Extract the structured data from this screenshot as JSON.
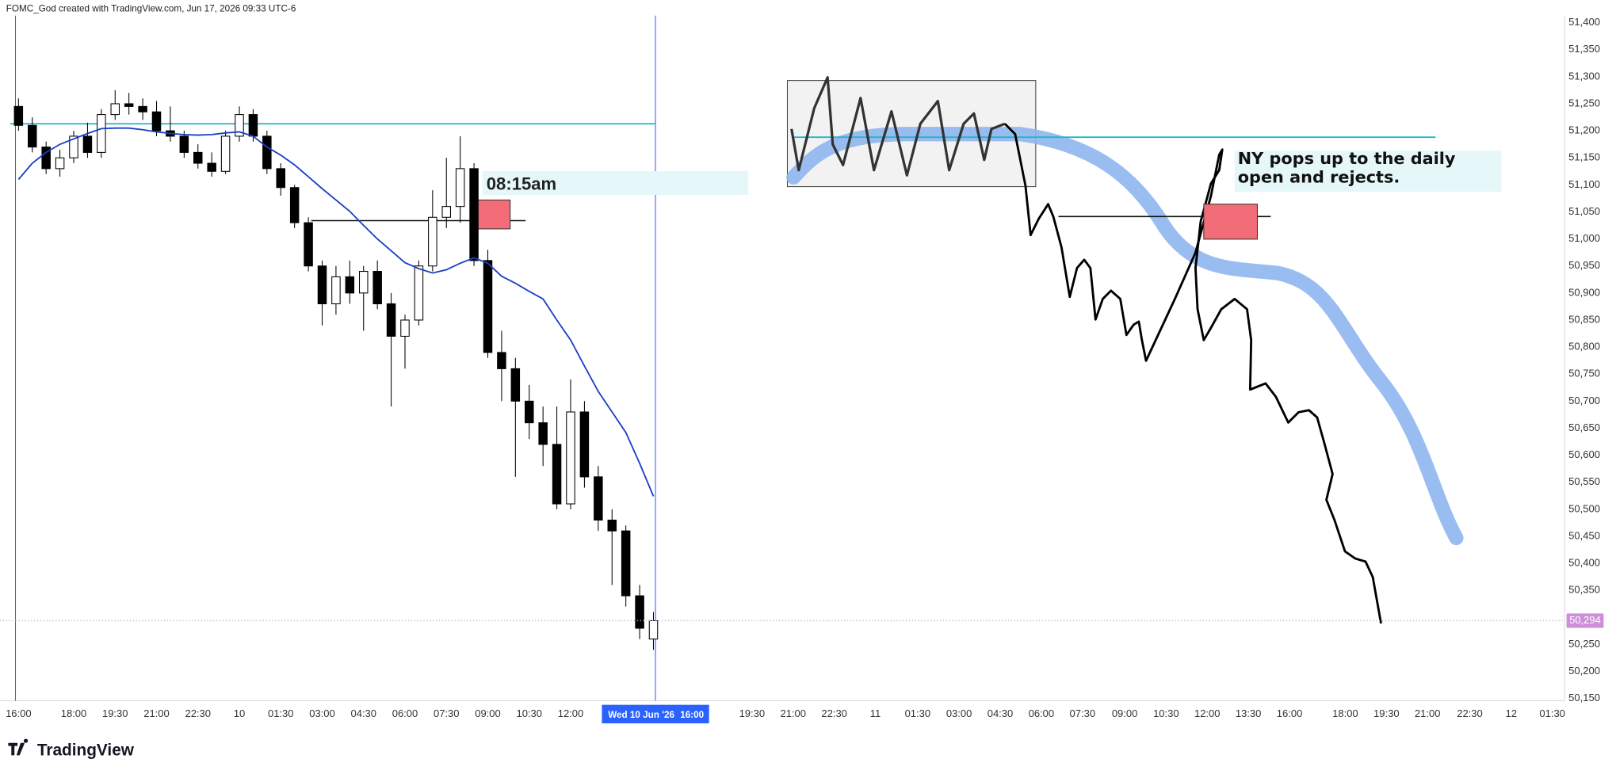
{
  "chart_data": {
    "type": "candlestick",
    "header": "FOMC_God created with TradingView.com, Jun 17, 2026 09:33 UTC-6",
    "watermark": "TradingView",
    "annotations": [
      "08:15am",
      "NY pops up to the daily open and rejects."
    ],
    "crosshair": {
      "date": "Wed 10 Jun '26",
      "time": "16:00"
    },
    "last_price": {
      "value": 50294,
      "label": "50,294",
      "color": "#ce8fd8"
    },
    "grid": false,
    "up_color": "#ffffff",
    "down_color": "#000000",
    "xlim": [
      -0.67,
      56
    ],
    "ylim": [
      50146,
      51413
    ],
    "xticks": [
      {
        "value": 0,
        "label": "16:00"
      },
      {
        "value": 2,
        "label": "18:00"
      },
      {
        "value": 3.5,
        "label": "19:30"
      },
      {
        "value": 5,
        "label": "21:00"
      },
      {
        "value": 6.5,
        "label": "22:30"
      },
      {
        "value": 8,
        "label": "10"
      },
      {
        "value": 9.5,
        "label": "01:30"
      },
      {
        "value": 11,
        "label": "03:00"
      },
      {
        "value": 12.5,
        "label": "04:30"
      },
      {
        "value": 14,
        "label": "06:00"
      },
      {
        "value": 15.5,
        "label": "07:30"
      },
      {
        "value": 17,
        "label": "09:00"
      },
      {
        "value": 18.5,
        "label": "10:30"
      },
      {
        "value": 20,
        "label": "12:00"
      },
      {
        "value": 26.57,
        "label": "19:30"
      },
      {
        "value": 28.06,
        "label": "21:00"
      },
      {
        "value": 29.55,
        "label": "22:30"
      },
      {
        "value": 31.04,
        "label": "11"
      },
      {
        "value": 32.57,
        "label": "01:30"
      },
      {
        "value": 34.07,
        "label": "03:00"
      },
      {
        "value": 35.56,
        "label": "04:30"
      },
      {
        "value": 37.05,
        "label": "06:00"
      },
      {
        "value": 38.54,
        "label": "07:30"
      },
      {
        "value": 40.07,
        "label": "09:00"
      },
      {
        "value": 41.57,
        "label": "10:30"
      },
      {
        "value": 43.06,
        "label": "12:00"
      },
      {
        "value": 44.55,
        "label": "13:30"
      },
      {
        "value": 46.04,
        "label": "16:00"
      },
      {
        "value": 48.06,
        "label": "18:00"
      },
      {
        "value": 49.55,
        "label": "19:30"
      },
      {
        "value": 51.04,
        "label": "21:00"
      },
      {
        "value": 52.57,
        "label": "22:30"
      },
      {
        "value": 54.07,
        "label": "12"
      },
      {
        "value": 55.56,
        "label": "01:30"
      }
    ],
    "yticks": [
      {
        "value": 51400,
        "label": "51,400"
      },
      {
        "value": 51350,
        "label": "51,350"
      },
      {
        "value": 51300,
        "label": "51,300"
      },
      {
        "value": 51250,
        "label": "51,250"
      },
      {
        "value": 51200,
        "label": "51,200"
      },
      {
        "value": 51150,
        "label": "51,150"
      },
      {
        "value": 51100,
        "label": "51,100"
      },
      {
        "value": 51050,
        "label": "51,050"
      },
      {
        "value": 51000,
        "label": "51,000"
      },
      {
        "value": 50950,
        "label": "50,950"
      },
      {
        "value": 50900,
        "label": "50,900"
      },
      {
        "value": 50850,
        "label": "50,850"
      },
      {
        "value": 50800,
        "label": "50,800"
      },
      {
        "value": 50750,
        "label": "50,750"
      },
      {
        "value": 50700,
        "label": "50,700"
      },
      {
        "value": 50650,
        "label": "50,650"
      },
      {
        "value": 50600,
        "label": "50,600"
      },
      {
        "value": 50550,
        "label": "50,550"
      },
      {
        "value": 50500,
        "label": "50,500"
      },
      {
        "value": 50450,
        "label": "50,450"
      },
      {
        "value": 50400,
        "label": "50,400"
      },
      {
        "value": 50350,
        "label": "50,350"
      },
      {
        "value": 50250,
        "label": "50,250"
      },
      {
        "value": 50200,
        "label": "50,200"
      },
      {
        "value": 50150,
        "label": "50,150"
      }
    ],
    "x": [
      0,
      0.5,
      1,
      1.5,
      2,
      2.5,
      3,
      3.5,
      4,
      4.5,
      5,
      5.5,
      6,
      6.5,
      7,
      7.5,
      8,
      8.5,
      9,
      9.5,
      10,
      10.5,
      11,
      11.5,
      12,
      12.5,
      13,
      13.5,
      14,
      14.5,
      15,
      15.5,
      16,
      16.5,
      17,
      17.5,
      18,
      18.5,
      19,
      19.5,
      20,
      20.5,
      21,
      21.5,
      22,
      22.5,
      23
    ],
    "open": [
      51245,
      51210,
      51170,
      51130,
      51150,
      51190,
      51160,
      51230,
      51250,
      51245,
      51235,
      51200,
      51190,
      51160,
      51140,
      51125,
      51190,
      51230,
      51190,
      51130,
      51095,
      51030,
      50950,
      50880,
      50930,
      50900,
      50940,
      50880,
      50820,
      50850,
      50950,
      51040,
      51060,
      51130,
      50960,
      50790,
      50760,
      50700,
      50660,
      50620,
      50510,
      50680,
      50560,
      50480,
      50460,
      50340,
      50260
    ],
    "high": [
      51260,
      51225,
      51180,
      51165,
      51200,
      51215,
      51240,
      51275,
      51270,
      51260,
      51255,
      51245,
      51200,
      51175,
      51160,
      51200,
      51245,
      51240,
      51200,
      51140,
      51100,
      51040,
      50960,
      50950,
      50960,
      50950,
      50960,
      50900,
      50860,
      50960,
      51090,
      51150,
      51190,
      51140,
      50980,
      50830,
      50780,
      50730,
      50690,
      50690,
      50740,
      50700,
      50580,
      50500,
      50470,
      50360,
      50310
    ],
    "low": [
      51200,
      51160,
      51120,
      51115,
      51140,
      51150,
      51150,
      51220,
      51230,
      51220,
      51190,
      51180,
      51150,
      51130,
      51115,
      51120,
      51180,
      51180,
      51120,
      51080,
      51020,
      50940,
      50840,
      50860,
      50880,
      50830,
      50870,
      50690,
      50760,
      50840,
      50940,
      51020,
      51030,
      50950,
      50780,
      50700,
      50560,
      50630,
      50580,
      50500,
      50500,
      50540,
      50460,
      50360,
      50320,
      50260,
      50240
    ],
    "close": [
      51210,
      51170,
      51130,
      51150,
      51190,
      51160,
      51230,
      51250,
      51245,
      51235,
      51200,
      51190,
      51160,
      51140,
      51125,
      51190,
      51230,
      51190,
      51130,
      51095,
      51030,
      50950,
      50880,
      50930,
      50900,
      50940,
      50880,
      50820,
      50850,
      50950,
      51040,
      51060,
      51130,
      50960,
      50790,
      50760,
      50700,
      50660,
      50620,
      50510,
      50680,
      50560,
      50480,
      50460,
      50340,
      50280,
      50294
    ],
    "ma": {
      "color": "#1a3fc4",
      "values": [
        51110,
        51140,
        51160,
        51175,
        51185,
        51195,
        51204,
        51205,
        51205,
        51202,
        51198,
        51195,
        51193,
        51192,
        51193,
        51196,
        51198,
        51190,
        51170,
        51155,
        51137,
        51115,
        51093,
        51072,
        51051,
        51025,
        51000,
        50978,
        50956,
        50945,
        50937,
        50943,
        50955,
        50965,
        50955,
        50931,
        50918,
        50903,
        50889,
        50850,
        50813,
        50765,
        50718,
        50680,
        50642,
        50585,
        50524
      ]
    }
  }
}
